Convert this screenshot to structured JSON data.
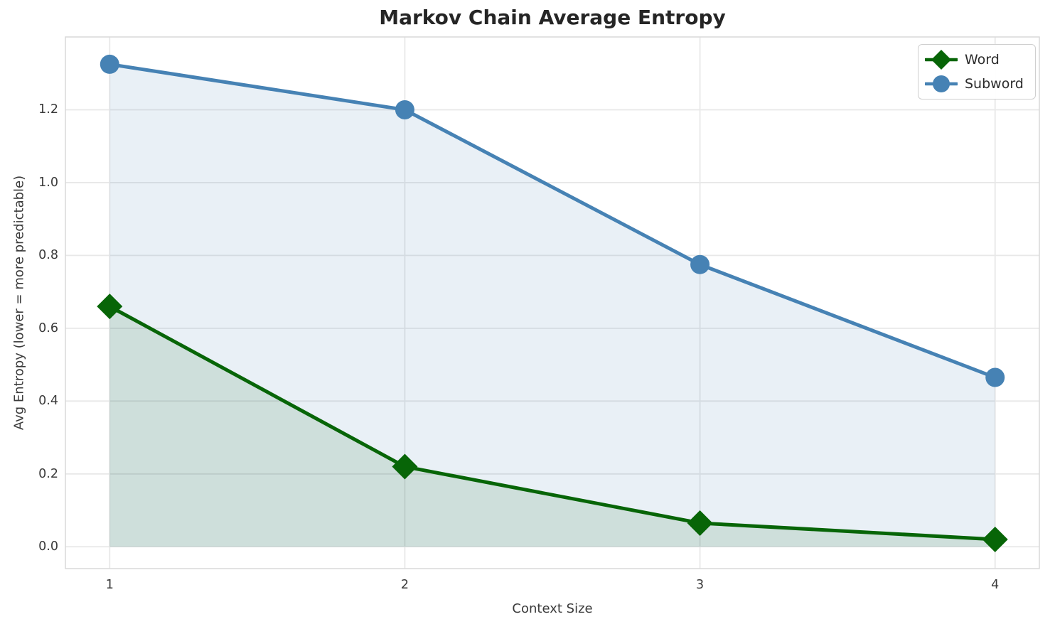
{
  "title": "Markov Chain Average Entropy",
  "chart_data": {
    "type": "line",
    "title": "Markov Chain Average Entropy",
    "x": [
      1,
      2,
      3,
      4
    ],
    "series": [
      {
        "name": "Word",
        "values": [
          0.66,
          0.22,
          0.065,
          0.02
        ],
        "color": "#076507",
        "marker": "diamond"
      },
      {
        "name": "Subword",
        "values": [
          1.325,
          1.2,
          0.775,
          0.465
        ],
        "color": "#4682b4",
        "marker": "circle"
      }
    ],
    "xlabel": "Context Size",
    "ylabel": "Avg Entropy (lower = more predictable)",
    "xtick_labels": [
      "1",
      "2",
      "3",
      "4"
    ],
    "xtick_values": [
      1,
      2,
      3,
      4
    ],
    "ytick_labels": [
      "0.0",
      "0.2",
      "0.4",
      "0.6",
      "0.8",
      "1.0",
      "1.2"
    ],
    "ytick_values": [
      0,
      0.2,
      0.4,
      0.6,
      0.8,
      1.0,
      1.2
    ],
    "xlim": [
      0.85,
      4.15
    ],
    "ylim": [
      -0.06,
      1.4
    ],
    "grid": true,
    "legend_position": "upper right",
    "fill_to_zero": true,
    "fill_opacity": 0.12,
    "line_width": 5
  }
}
